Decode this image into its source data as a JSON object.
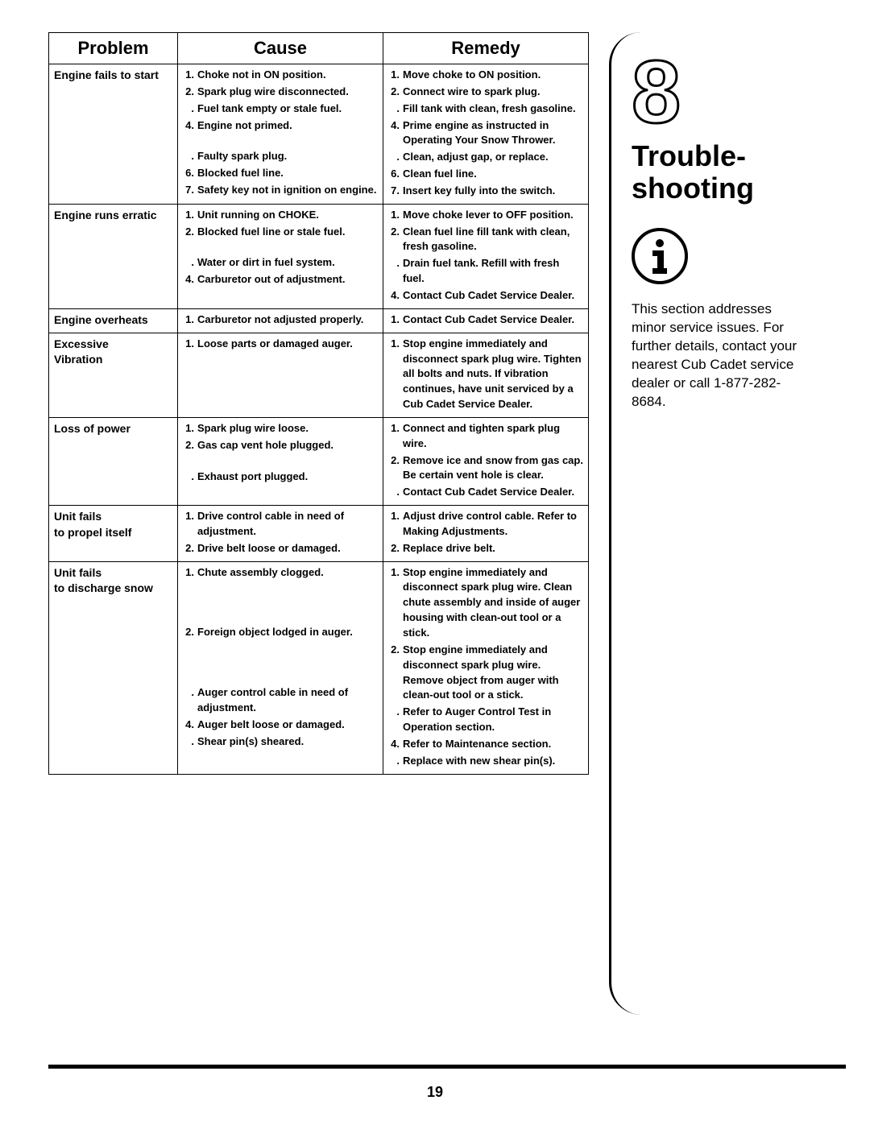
{
  "headers": {
    "problem": "Problem",
    "cause": "Cause",
    "remedy": "Remedy"
  },
  "rows": [
    {
      "problem": "Engine fails to start",
      "causes": [
        {
          "n": "1.",
          "t": "Choke not in ON position."
        },
        {
          "n": "2.",
          "t": "Spark plug wire disconnected."
        },
        {
          "n": ".",
          "t": "Fuel tank empty or stale fuel."
        },
        {
          "n": "4.",
          "t": "Engine not primed."
        },
        {
          "n": "",
          "t": ""
        },
        {
          "n": ".",
          "t": "Faulty spark plug."
        },
        {
          "n": "6.",
          "t": "Blocked fuel line."
        },
        {
          "n": "7.",
          "t": "Safety key not in ignition on engine."
        }
      ],
      "remedies": [
        {
          "n": "1.",
          "t": "Move choke to ON position."
        },
        {
          "n": "2.",
          "t": "Connect wire to spark plug."
        },
        {
          "n": ".",
          "t": "Fill tank with clean, fresh gasoline."
        },
        {
          "n": "4.",
          "t": "Prime engine as instructed in Operating Your Snow Thrower."
        },
        {
          "n": ".",
          "t": "Clean, adjust gap, or replace."
        },
        {
          "n": "6.",
          "t": "Clean fuel line."
        },
        {
          "n": "7.",
          "t": "Insert key fully into the switch."
        }
      ]
    },
    {
      "problem": "Engine runs erratic",
      "causes": [
        {
          "n": "1.",
          "t": "Unit running on CHOKE."
        },
        {
          "n": "2.",
          "t": "Blocked fuel line or stale fuel."
        },
        {
          "n": "",
          "t": ""
        },
        {
          "n": ".",
          "t": "Water or dirt in fuel system."
        },
        {
          "n": "4.",
          "t": "Carburetor out of adjustment."
        }
      ],
      "remedies": [
        {
          "n": "1.",
          "t": "Move choke lever to OFF position."
        },
        {
          "n": "2.",
          "t": "Clean fuel line fill tank with clean, fresh gasoline."
        },
        {
          "n": ".",
          "t": "Drain fuel tank. Refill with fresh fuel."
        },
        {
          "n": "4.",
          "t": "Contact Cub Cadet Service Dealer."
        }
      ]
    },
    {
      "problem": "Engine overheats",
      "causes": [
        {
          "n": "1.",
          "t": "Carburetor not adjusted properly."
        }
      ],
      "remedies": [
        {
          "n": "1.",
          "t": "Contact Cub Cadet Service Dealer."
        }
      ]
    },
    {
      "problem": "Excessive\nVibration",
      "causes": [
        {
          "n": "1.",
          "t": "Loose parts or damaged auger."
        }
      ],
      "remedies": [
        {
          "n": "1.",
          "t": "Stop engine immediately and disconnect spark plug wire. Tighten all bolts and nuts. If vibration continues, have unit serviced by a Cub Cadet Service Dealer."
        }
      ]
    },
    {
      "problem": "Loss of power",
      "causes": [
        {
          "n": "1.",
          "t": "Spark plug wire loose."
        },
        {
          "n": "2.",
          "t": "Gas cap vent hole plugged."
        },
        {
          "n": "",
          "t": ""
        },
        {
          "n": ".",
          "t": "Exhaust port plugged."
        }
      ],
      "remedies": [
        {
          "n": "1.",
          "t": "Connect and tighten spark plug wire."
        },
        {
          "n": "2.",
          "t": "Remove ice and snow from gas cap. Be certain vent hole is clear."
        },
        {
          "n": ".",
          "t": "Contact Cub Cadet Service Dealer."
        }
      ]
    },
    {
      "problem": "Unit fails\nto propel itself",
      "causes": [
        {
          "n": "1.",
          "t": "Drive control cable in need of adjustment."
        },
        {
          "n": "2.",
          "t": "Drive belt loose or damaged."
        }
      ],
      "remedies": [
        {
          "n": "1.",
          "t": "Adjust drive control cable. Refer to Making Adjustments."
        },
        {
          "n": "2.",
          "t": "Replace drive belt."
        }
      ]
    },
    {
      "problem": "Unit fails\nto discharge snow",
      "causes": [
        {
          "n": "1.",
          "t": "Chute assembly clogged."
        },
        {
          "n": "",
          "t": ""
        },
        {
          "n": "",
          "t": ""
        },
        {
          "n": "",
          "t": ""
        },
        {
          "n": "2.",
          "t": "Foreign object lodged in auger."
        },
        {
          "n": "",
          "t": ""
        },
        {
          "n": "",
          "t": ""
        },
        {
          "n": "",
          "t": ""
        },
        {
          "n": ".",
          "t": "Auger control cable in need of adjustment."
        },
        {
          "n": "4.",
          "t": "Auger belt loose or damaged."
        },
        {
          "n": ".",
          "t": "Shear pin(s) sheared."
        }
      ],
      "remedies": [
        {
          "n": "1.",
          "t": "Stop engine immediately and disconnect spark plug wire. Clean chute assembly and inside of auger housing with clean-out tool or a stick."
        },
        {
          "n": "2.",
          "t": "Stop engine immediately and disconnect spark plug wire. Remove object from auger with clean-out tool or a stick."
        },
        {
          "n": ".",
          "t": "Refer to Auger Control Test in Operation section."
        },
        {
          "n": "4.",
          "t": "Refer to Maintenance section."
        },
        {
          "n": ".",
          "t": "Replace with new shear pin(s)."
        }
      ]
    }
  ],
  "sidebar": {
    "chapter_num": "8",
    "title": "Trouble-\nshooting",
    "text": "This section addresses minor service issues. For further details, contact your nearest Cub Cadet service dealer or call 1-877-282-8684."
  },
  "page_number": "19"
}
